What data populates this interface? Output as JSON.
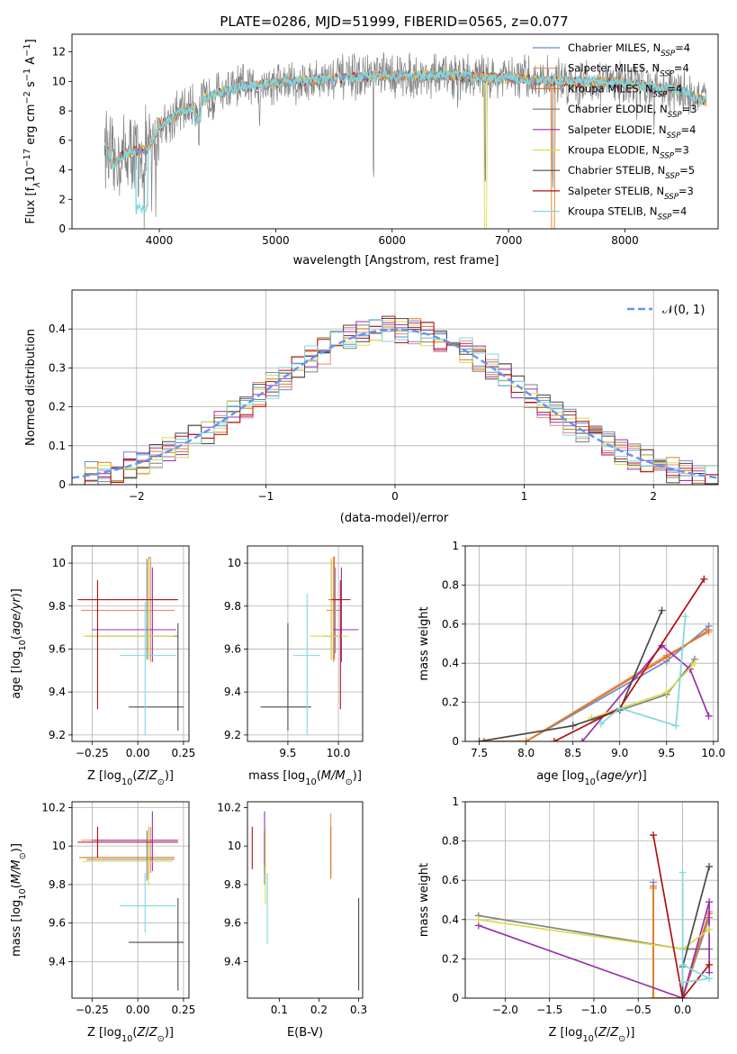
{
  "figure_title": "PLATE=0286, MJD=51999, FIBERID=0565, z=0.077",
  "colors": {
    "chabrier_miles": "#6a8bd8",
    "salpeter_miles": "#e98a6f",
    "kroupa_miles": "#e07b1a",
    "chabrier_elodie": "#808080",
    "salpeter_elodie": "#9b2fae",
    "kroupa_elodie": "#d8dc4a",
    "chabrier_stelib": "#4a4a4a",
    "salpeter_stelib": "#b01010",
    "kroupa_stelib": "#7fd8e0",
    "gauss": "#6495ed",
    "grid": "#b0b0b0"
  },
  "chart_data": [
    {
      "id": "spectrum",
      "type": "line",
      "xlabel": "wavelength [Angstrom, rest frame]",
      "ylabel": "Flux [f",
      "xlim": [
        3250,
        8800
      ],
      "ylim": [
        0,
        13.2
      ],
      "xticks": [
        4000,
        5000,
        6000,
        7000,
        8000
      ],
      "yticks": [
        0,
        2,
        4,
        6,
        8,
        10,
        12
      ],
      "grid": false,
      "legend_position": "right",
      "legend": [
        {
          "key": "chabrier_miles",
          "label": "Chabrier MILES, N",
          "n": "=4"
        },
        {
          "key": "salpeter_miles",
          "label": "Salpeter MILES, N",
          "n": "=4"
        },
        {
          "key": "kroupa_miles",
          "label": "Kroupa MILES, N",
          "n": "=4"
        },
        {
          "key": "chabrier_elodie",
          "label": "Chabrier ELODIE, N",
          "n": "=3"
        },
        {
          "key": "salpeter_elodie",
          "label": "Salpeter ELODIE, N",
          "n": "=4"
        },
        {
          "key": "kroupa_elodie",
          "label": "Kroupa ELODIE, N",
          "n": "=3"
        },
        {
          "key": "chabrier_stelib",
          "label": "Chabrier STELIB, N",
          "n": "=5"
        },
        {
          "key": "salpeter_stelib",
          "label": "Salpeter STELIB, N",
          "n": "=3"
        },
        {
          "key": "kroupa_stelib",
          "label": "Kroupa STELIB, N",
          "n": "=4"
        }
      ],
      "continuum": [
        [
          3530,
          6.0
        ],
        [
          3600,
          4.3
        ],
        [
          3700,
          5.1
        ],
        [
          3800,
          5.3
        ],
        [
          3900,
          5.4
        ],
        [
          4000,
          7.0
        ],
        [
          4100,
          7.5
        ],
        [
          4200,
          8.0
        ],
        [
          4300,
          8.3
        ],
        [
          4400,
          8.8
        ],
        [
          4500,
          9.2
        ],
        [
          4700,
          9.6
        ],
        [
          5000,
          9.9
        ],
        [
          5500,
          10.2
        ],
        [
          6000,
          10.4
        ],
        [
          6500,
          10.4
        ],
        [
          7000,
          10.2
        ],
        [
          7500,
          10.0
        ],
        [
          8000,
          9.9
        ],
        [
          8500,
          9.3
        ],
        [
          8700,
          8.6
        ]
      ],
      "features": [
        [
          3820,
          0.0
        ],
        [
          3870,
          0.0
        ],
        [
          3935,
          0.5
        ],
        [
          3970,
          0.8
        ],
        [
          4340,
          4.2
        ],
        [
          4861,
          6.4
        ],
        [
          5175,
          8.1
        ],
        [
          5840,
          0.6
        ],
        [
          6563,
          7.8
        ],
        [
          6800,
          0.0
        ],
        [
          7380,
          0.0
        ],
        [
          7600,
          7.1
        ],
        [
          8100,
          7.0
        ],
        [
          8250,
          6.7
        ]
      ]
    },
    {
      "id": "residuals",
      "type": "line",
      "xlabel": "(data-model)/error",
      "ylabel": "Normed distribution",
      "xlim": [
        -2.5,
        2.5
      ],
      "ylim": [
        0,
        0.5
      ],
      "xticks": [
        -2,
        -1,
        0,
        1,
        2
      ],
      "yticks": [
        0.0,
        0.1,
        0.2,
        0.3,
        0.4
      ],
      "grid": true,
      "legend_position": "top-right",
      "legend_label": "𝒩(0, 1)",
      "series_keys": [
        "chabrier_miles",
        "salpeter_miles",
        "kroupa_miles",
        "chabrier_elodie",
        "salpeter_elodie",
        "kroupa_elodie",
        "chabrier_stelib",
        "salpeter_stelib",
        "kroupa_stelib"
      ]
    },
    {
      "id": "age_vs_Z",
      "type": "scatter",
      "xlabel": "Z [log",
      "ylabel": "age  [log",
      "xlim": [
        -0.36,
        0.28
      ],
      "ylim": [
        9.17,
        10.08
      ],
      "xticks": [
        -0.25,
        0.0,
        0.25
      ],
      "xticklabels": [
        "−0.25",
        "0.00",
        "0.25"
      ],
      "yticks": [
        9.2,
        9.4,
        9.6,
        9.8,
        10.0
      ],
      "grid": true,
      "points": [
        {
          "key": "chabrier_miles",
          "x": 0.06,
          "y": 9.83,
          "xe": [
            -0.3,
            0.22
          ],
          "ye": [
            9.58,
            9.98
          ]
        },
        {
          "key": "salpeter_miles",
          "x": 0.07,
          "y": 9.78,
          "xe": [
            -0.31,
            0.2
          ],
          "ye": [
            9.54,
            10.03
          ]
        },
        {
          "key": "kroupa_miles",
          "x": 0.06,
          "y": 9.83,
          "xe": [
            -0.32,
            0.22
          ],
          "ye": [
            9.55,
            10.03
          ]
        },
        {
          "key": "chabrier_elodie",
          "x": 0.05,
          "y": 9.66,
          "xe": [
            -0.28,
            0.22
          ],
          "ye": [
            9.55,
            10.02
          ]
        },
        {
          "key": "salpeter_elodie",
          "x": 0.08,
          "y": 9.69,
          "xe": [
            -0.25,
            0.21
          ],
          "ye": [
            9.54,
            9.98
          ]
        },
        {
          "key": "kroupa_elodie",
          "x": 0.06,
          "y": 9.66,
          "xe": [
            -0.3,
            0.2
          ],
          "ye": [
            9.55,
            10.02
          ]
        },
        {
          "key": "chabrier_stelib",
          "x": 0.22,
          "y": 9.33,
          "xe": [
            -0.05,
            0.25
          ],
          "ye": [
            9.22,
            9.72
          ]
        },
        {
          "key": "salpeter_stelib",
          "x": -0.22,
          "y": 9.83,
          "xe": [
            -0.33,
            0.22
          ],
          "ye": [
            9.32,
            9.92
          ]
        },
        {
          "key": "kroupa_stelib",
          "x": 0.04,
          "y": 9.57,
          "xe": [
            -0.1,
            0.21
          ],
          "ye": [
            9.2,
            9.82
          ]
        }
      ]
    },
    {
      "id": "age_vs_mass",
      "type": "scatter",
      "xlabel": "mass [log",
      "ylabel": "",
      "xlim": [
        9.1,
        10.24
      ],
      "ylim": [
        9.17,
        10.08
      ],
      "xticks": [
        9.5,
        10.0
      ],
      "xticklabels": [
        "9.5",
        "10.0"
      ],
      "yticks": [
        9.2,
        9.4,
        9.6,
        9.8,
        10.0
      ],
      "grid": true,
      "points": [
        {
          "key": "chabrier_miles",
          "x": 9.97,
          "y": 9.83,
          "xe": [
            9.92,
            10.02
          ],
          "ye": [
            9.58,
            9.98
          ]
        },
        {
          "key": "salpeter_miles",
          "x": 9.95,
          "y": 9.78,
          "xe": [
            9.88,
            10.02
          ],
          "ye": [
            9.54,
            10.03
          ]
        },
        {
          "key": "kroupa_miles",
          "x": 9.96,
          "y": 9.83,
          "xe": [
            9.9,
            10.02
          ],
          "ye": [
            9.55,
            10.03
          ]
        },
        {
          "key": "chabrier_elodie",
          "x": 9.93,
          "y": 9.66,
          "xe": [
            9.85,
            10.0
          ],
          "ye": [
            9.55,
            10.02
          ]
        },
        {
          "key": "salpeter_elodie",
          "x": 10.03,
          "y": 9.69,
          "xe": [
            9.95,
            10.2
          ],
          "ye": [
            9.54,
            9.98
          ]
        },
        {
          "key": "kroupa_elodie",
          "x": 9.93,
          "y": 9.66,
          "xe": [
            9.72,
            10.1
          ],
          "ye": [
            9.55,
            10.02
          ]
        },
        {
          "key": "chabrier_stelib",
          "x": 9.5,
          "y": 9.33,
          "xe": [
            9.23,
            9.73
          ],
          "ye": [
            9.22,
            9.72
          ]
        },
        {
          "key": "salpeter_stelib",
          "x": 10.02,
          "y": 9.83,
          "xe": [
            9.93,
            10.12
          ],
          "ye": [
            9.32,
            9.92
          ]
        },
        {
          "key": "kroupa_stelib",
          "x": 9.69,
          "y": 9.57,
          "xe": [
            9.55,
            9.82
          ],
          "ye": [
            9.2,
            9.86
          ]
        }
      ]
    },
    {
      "id": "weight_vs_age",
      "type": "line",
      "xlabel": "age  [log",
      "ylabel": "mass weight",
      "xlim": [
        7.35,
        10.05
      ],
      "ylim": [
        0,
        1.0
      ],
      "xticks": [
        7.5,
        8.0,
        8.5,
        9.0,
        9.5,
        10.0
      ],
      "xticklabels": [
        "7.5",
        "8.0",
        "8.5",
        "9.0",
        "9.5",
        "10.0"
      ],
      "yticks": [
        0.0,
        0.2,
        0.4,
        0.6,
        0.8,
        1.0
      ],
      "grid": true,
      "series": [
        {
          "key": "chabrier_miles",
          "x": [
            7.55,
            8.0,
            9.5,
            9.95
          ],
          "y": [
            0.0,
            0.0,
            0.41,
            0.59
          ]
        },
        {
          "key": "salpeter_miles",
          "x": [
            7.55,
            8.0,
            9.5,
            9.95
          ],
          "y": [
            0.0,
            0.0,
            0.44,
            0.56
          ]
        },
        {
          "key": "kroupa_miles",
          "x": [
            7.55,
            8.0,
            9.5,
            9.95
          ],
          "y": [
            0.0,
            0.0,
            0.43,
            0.57
          ]
        },
        {
          "key": "chabrier_elodie",
          "x": [
            8.7,
            9.5,
            9.8
          ],
          "y": [
            0.11,
            0.24,
            0.42
          ]
        },
        {
          "key": "salpeter_elodie",
          "x": [
            8.6,
            9.45,
            9.75,
            9.95
          ],
          "y": [
            0.0,
            0.49,
            0.37,
            0.13
          ]
        },
        {
          "key": "kroupa_elodie",
          "x": [
            8.7,
            9.5,
            9.8
          ],
          "y": [
            0.12,
            0.25,
            0.4
          ]
        },
        {
          "key": "chabrier_stelib",
          "x": [
            7.5,
            8.5,
            9.0,
            9.45
          ],
          "y": [
            0.0,
            0.08,
            0.16,
            0.67
          ]
        },
        {
          "key": "salpeter_stelib",
          "x": [
            8.3,
            9.0,
            9.9
          ],
          "y": [
            0.0,
            0.17,
            0.83
          ]
        },
        {
          "key": "kroupa_stelib",
          "x": [
            8.8,
            9.0,
            9.6,
            9.7
          ],
          "y": [
            0.09,
            0.17,
            0.08,
            0.64
          ]
        }
      ]
    },
    {
      "id": "mass_vs_Z",
      "type": "scatter",
      "xlabel": "Z [log",
      "ylabel": "mass [log",
      "xlim": [
        -0.36,
        0.28
      ],
      "ylim": [
        9.21,
        10.23
      ],
      "xticks": [
        -0.25,
        0.0,
        0.25
      ],
      "xticklabels": [
        "−0.25",
        "0.00",
        "0.25"
      ],
      "yticks": [
        9.4,
        9.6,
        9.8,
        10.0,
        10.2
      ],
      "grid": true,
      "points": [
        {
          "key": "chabrier_miles",
          "x": 0.06,
          "y": 9.94,
          "xe": [
            -0.3,
            0.2
          ],
          "ye": [
            9.83,
            10.1
          ]
        },
        {
          "key": "salpeter_miles",
          "x": 0.07,
          "y": 10.03,
          "xe": [
            -0.31,
            0.22
          ],
          "ye": [
            9.86,
            10.1
          ]
        },
        {
          "key": "kroupa_miles",
          "x": 0.06,
          "y": 9.94,
          "xe": [
            -0.32,
            0.2
          ],
          "ye": [
            9.83,
            10.08
          ]
        },
        {
          "key": "chabrier_elodie",
          "x": 0.05,
          "y": 9.93,
          "xe": [
            -0.28,
            0.2
          ],
          "ye": [
            9.82,
            10.08
          ]
        },
        {
          "key": "salpeter_elodie",
          "x": 0.08,
          "y": 10.03,
          "xe": [
            -0.25,
            0.22
          ],
          "ye": [
            9.87,
            10.18
          ]
        },
        {
          "key": "kroupa_elodie",
          "x": 0.06,
          "y": 9.92,
          "xe": [
            -0.3,
            0.19
          ],
          "ye": [
            9.8,
            10.1
          ]
        },
        {
          "key": "chabrier_stelib",
          "x": 0.22,
          "y": 9.5,
          "xe": [
            -0.05,
            0.25
          ],
          "ye": [
            9.25,
            9.73
          ]
        },
        {
          "key": "salpeter_stelib",
          "x": -0.22,
          "y": 10.02,
          "xe": [
            -0.33,
            0.22
          ],
          "ye": [
            9.94,
            10.1
          ]
        },
        {
          "key": "kroupa_stelib",
          "x": 0.04,
          "y": 9.69,
          "xe": [
            -0.1,
            0.21
          ],
          "ye": [
            9.55,
            9.86
          ]
        }
      ]
    },
    {
      "id": "mass_vs_ebv",
      "type": "scatter",
      "xlabel": "E(B-V)",
      "ylabel": "",
      "xlim": [
        0.02,
        0.31
      ],
      "ylim": [
        9.21,
        10.23
      ],
      "xticks": [
        0.1,
        0.2,
        0.3
      ],
      "xticklabels": [
        "0.1",
        "0.2",
        "0.3"
      ],
      "yticks": [
        9.4,
        9.6,
        9.8,
        10.0,
        10.2
      ],
      "grid": false,
      "points": [
        {
          "key": "chabrier_miles",
          "x": 0.063,
          "y": 9.94,
          "ye": [
            9.8,
            10.08
          ]
        },
        {
          "key": "salpeter_miles",
          "x": 0.23,
          "y": 10.03,
          "ye": [
            9.85,
            10.17
          ]
        },
        {
          "key": "kroupa_miles",
          "x": 0.23,
          "y": 9.94,
          "ye": [
            9.83,
            10.1
          ]
        },
        {
          "key": "chabrier_elodie",
          "x": 0.063,
          "y": 9.93,
          "ye": [
            9.85,
            10.08
          ]
        },
        {
          "key": "salpeter_elodie",
          "x": 0.063,
          "y": 10.03,
          "ye": [
            9.9,
            10.18
          ]
        },
        {
          "key": "kroupa_elodie",
          "x": 0.065,
          "y": 9.92,
          "ye": [
            9.7,
            10.1
          ]
        },
        {
          "key": "chabrier_stelib",
          "x": 0.3,
          "y": 9.5,
          "ye": [
            9.25,
            9.73
          ]
        },
        {
          "key": "salpeter_stelib",
          "x": 0.032,
          "y": 10.0,
          "ye": [
            9.88,
            10.1
          ]
        },
        {
          "key": "kroupa_stelib",
          "x": 0.07,
          "y": 9.69,
          "ye": [
            9.49,
            9.86
          ]
        }
      ]
    },
    {
      "id": "weight_vs_Z",
      "type": "line",
      "xlabel": "Z [log",
      "ylabel": "mass weight",
      "xlim": [
        -2.45,
        0.4
      ],
      "ylim": [
        0,
        1.0
      ],
      "xticks": [
        -2.0,
        -1.5,
        -1.0,
        -0.5,
        0.0
      ],
      "xticklabels": [
        "−2.0",
        "−1.5",
        "−1.0",
        "−0.5",
        "0.0"
      ],
      "yticks": [
        0.0,
        0.2,
        0.4,
        0.6,
        0.8,
        1.0
      ],
      "grid": true,
      "series": [
        {
          "key": "chabrier_miles",
          "x": [
            -0.33,
            -0.33,
            0.0,
            0.3
          ],
          "y": [
            0.59,
            0.0,
            0.0,
            0.41
          ]
        },
        {
          "key": "salpeter_miles",
          "x": [
            -0.33,
            -0.33,
            0.0,
            0.3
          ],
          "y": [
            0.56,
            0.0,
            0.0,
            0.44
          ]
        },
        {
          "key": "kroupa_miles",
          "x": [
            -0.33,
            -0.33,
            0.0,
            0.3
          ],
          "y": [
            0.57,
            0.0,
            0.0,
            0.43
          ]
        },
        {
          "key": "chabrier_elodie",
          "x": [
            -2.3,
            0.0,
            0.3
          ],
          "y": [
            0.42,
            0.25,
            0.25
          ]
        },
        {
          "key": "salpeter_elodie",
          "x": [
            -2.3,
            0.0,
            0.3,
            0.3
          ],
          "y": [
            0.37,
            0.0,
            0.49,
            0.13
          ]
        },
        {
          "key": "kroupa_elodie",
          "x": [
            -2.3,
            0.0,
            0.3
          ],
          "y": [
            0.4,
            0.25,
            0.35
          ]
        },
        {
          "key": "chabrier_stelib",
          "x": [
            0.0,
            0.0,
            0.3
          ],
          "y": [
            0.0,
            0.16,
            0.67
          ]
        },
        {
          "key": "salpeter_stelib",
          "x": [
            -0.33,
            0.0,
            0.3
          ],
          "y": [
            0.83,
            0.0,
            0.17
          ]
        },
        {
          "key": "kroupa_stelib",
          "x": [
            0.0,
            0.0,
            0.3,
            0.0
          ],
          "y": [
            0.64,
            0.08,
            0.1,
            0.17
          ]
        }
      ]
    }
  ]
}
